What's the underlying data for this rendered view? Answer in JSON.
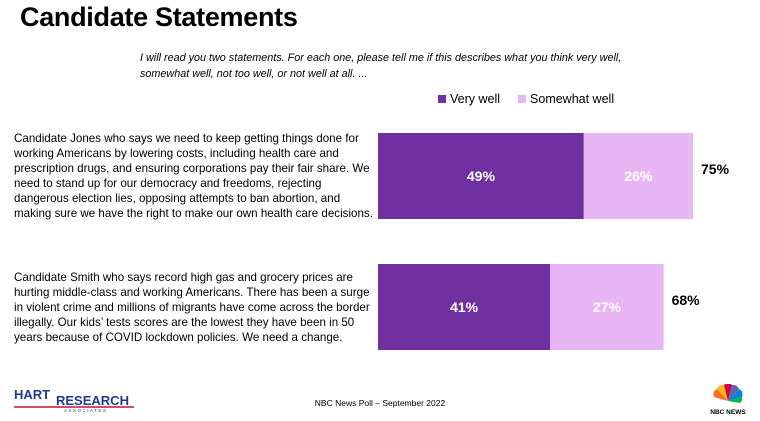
{
  "page": {
    "title": "Candidate Statements",
    "question": "I will read you two statements. For each one, please tell me if this describes what you think very well, somewhat well, not too well, or not well at all. ...",
    "footer": "NBC News Poll – September 2022",
    "logo_left": "HART RESEARCH ASSOCIATES",
    "logo_right": "NBC NEWS"
  },
  "statements": [
    "Candidate Jones who says we need to keep getting things done for working Americans by lowering costs, including health care and prescription drugs, and ensuring corporations pay their fair share. We need to stand up for our democracy and freedoms, rejecting dangerous election lies, opposing attempts to ban abortion, and making sure we have the right to make our own health care decisions.",
    "Candidate Smith who says record high gas and grocery prices are hurting middle-class and working Americans. There has been a surge in violent crime and millions of migrants have come across the border illegally. Our kids’ tests scores are the lowest they have been in 50 years because of COVID lockdown policies. We need a change."
  ],
  "chart_data": {
    "type": "bar",
    "orientation": "horizontal",
    "stacked": true,
    "categories": [
      "Candidate Jones",
      "Candidate Smith"
    ],
    "series": [
      {
        "name": "Very well",
        "values": [
          49,
          41
        ],
        "labels": [
          "49%",
          "41%"
        ],
        "color": "#7030a0"
      },
      {
        "name": "Somewhat well",
        "values": [
          26,
          27
        ],
        "labels": [
          "26%",
          "27%"
        ],
        "color": "#e8b6f4"
      }
    ],
    "totals": [
      "75%",
      "68%"
    ],
    "value_unit": "%",
    "legend_position": "top",
    "grid": false
  }
}
